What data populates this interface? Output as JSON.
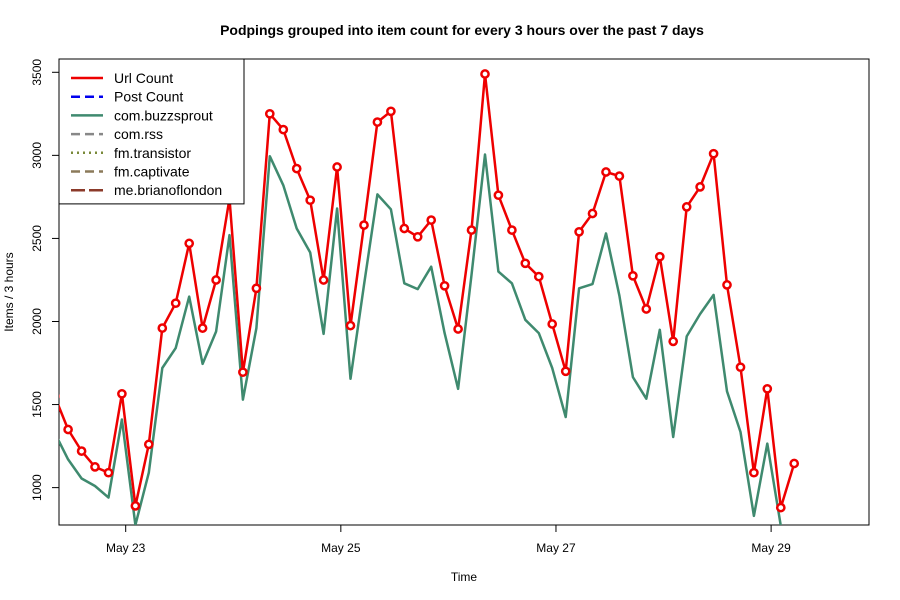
{
  "chart_data": {
    "type": "line",
    "title": "Podpings grouped into item count for every 3 hours  over the past 7 days",
    "xlabel": "Time",
    "ylabel": "Items / 3 hours",
    "x_domain": [
      0.38,
      7.91
    ],
    "ylim": [
      775,
      3580
    ],
    "x_ticks": [
      {
        "label": "May 23",
        "value": 1
      },
      {
        "label": "May 25",
        "value": 3
      },
      {
        "label": "May 27",
        "value": 5
      },
      {
        "label": "May 29",
        "value": 7
      }
    ],
    "y_ticks": [
      1000,
      1500,
      2000,
      2500,
      3000,
      3500
    ],
    "x_step_days": 0.125,
    "x_start": 0.34,
    "grid": false,
    "legend": {
      "position": "top-left",
      "items": [
        {
          "label": "Url Count",
          "color": "#ee0000",
          "dash": "solid"
        },
        {
          "label": "Post Count",
          "color": "#0000ee",
          "dash": "dashed"
        },
        {
          "label": "com.buzzsprout",
          "color": "#3f8a6f",
          "dash": "solid"
        },
        {
          "label": "com.rss",
          "color": "#888888",
          "dash": "dashed"
        },
        {
          "label": "fm.transistor",
          "color": "#7a8a3a",
          "dash": "dotted"
        },
        {
          "label": "fm.captivate",
          "color": "#8b7a5a",
          "dash": "dashed"
        },
        {
          "label": "me.brianoflondon",
          "color": "#8b3a2a",
          "dash": "longdash"
        }
      ]
    },
    "series": [
      {
        "name": "Url Count",
        "color": "#ee0000",
        "markers": true,
        "values": [
          1550,
          1350,
          1220,
          1125,
          1090,
          1565,
          890,
          1260,
          1960,
          2110,
          2470,
          1960,
          2250,
          2740,
          1695,
          2200,
          3250,
          3155,
          2920,
          2730,
          2250,
          2930,
          1975,
          2580,
          3200,
          3265,
          2560,
          2510,
          2610,
          2215,
          1955,
          2550,
          3490,
          2760,
          2550,
          2350,
          2270,
          1985,
          1700,
          2540,
          2650,
          2900,
          2875,
          2275,
          2075,
          2390,
          1880,
          2690,
          2810,
          3010,
          2220,
          1725,
          1090,
          1595,
          880,
          1145
        ]
      },
      {
        "name": "com.buzzsprout",
        "color": "#3f8a6f",
        "markers": false,
        "values": [
          1330,
          1170,
          1055,
          1010,
          940,
          1410,
          775,
          1090,
          1720,
          1840,
          2150,
          1745,
          1940,
          2520,
          1530,
          1960,
          2995,
          2820,
          2560,
          2415,
          1925,
          2680,
          1655,
          2220,
          2765,
          2675,
          2230,
          2195,
          2330,
          1930,
          1595,
          2280,
          3005,
          2300,
          2230,
          2010,
          1930,
          1720,
          1425,
          2200,
          2225,
          2530,
          2155,
          1665,
          1535,
          1950,
          1305,
          1910,
          2045,
          2160,
          1580,
          1335,
          830,
          1265,
          770,
          null
        ]
      }
    ]
  }
}
